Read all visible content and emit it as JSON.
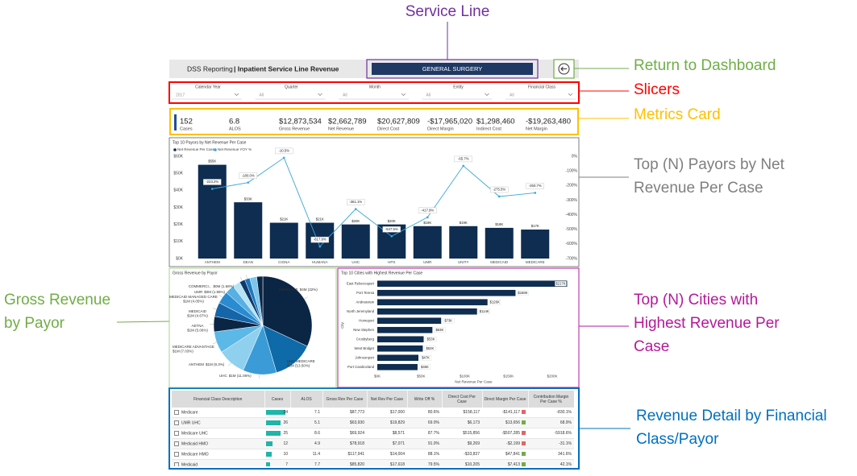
{
  "annotations": [
    {
      "lines": [
        "Service Line"
      ],
      "color": "#7030a0"
    },
    {
      "lines": [
        "Return to Dashboard"
      ],
      "color": "#70ad47"
    },
    {
      "lines": [
        "Slicers"
      ],
      "color": "#ff0000"
    },
    {
      "lines": [
        "Metrics Card"
      ],
      "color": "#ffc000"
    },
    {
      "lines": [
        "Top (N) Payors by Net",
        "Revenue Per Case"
      ],
      "color": "#7f7f7f"
    },
    {
      "lines": [
        "Gross Revenue",
        "by Payor"
      ],
      "color": "#70ad47"
    },
    {
      "lines": [
        "Top (N) Cities with",
        "Highest Revenue Per",
        "Case"
      ],
      "color": "#b4199b"
    },
    {
      "lines": [
        "Revenue Detail by Financial",
        "Class/Payor"
      ],
      "color": "#0070c0"
    }
  ],
  "header": {
    "app": "DSS Reporting",
    "title": "| Inpatient Service Line Revenue",
    "service_line": "GENERAL SURGERY"
  },
  "slicers": [
    {
      "label": "Calendar Year",
      "value": "2017"
    },
    {
      "label": "Quarter",
      "value": "All"
    },
    {
      "label": "Month",
      "value": "All"
    },
    {
      "label": "Entity",
      "value": "All"
    },
    {
      "label": "Financial Class",
      "value": "All"
    }
  ],
  "metrics": [
    {
      "value": "152",
      "label": "Cases"
    },
    {
      "value": "6.8",
      "label": "ALOS"
    },
    {
      "value": "$12,873,534",
      "label": "Gross Revenue"
    },
    {
      "value": "$2,662,789",
      "label": "Net Revenue"
    },
    {
      "value": "$20,627,809",
      "label": "Direct Cost"
    },
    {
      "value": "-$17,965,020",
      "label": "Direct Margin"
    },
    {
      "value": "$1,298,460",
      "label": "Indirect Cost"
    },
    {
      "value": "-$19,263,480",
      "label": "Net Margin"
    }
  ],
  "chart_data": [
    {
      "type": "bar",
      "title": "Top 10 Payors by Net Revenue Per Case",
      "categories": [
        "ANTHEM",
        "DEAN",
        "CIGNA",
        "HUMANA",
        "UHC",
        "HPS",
        "UMR",
        "UNITY",
        "MEDICAID",
        "MEDICARE"
      ],
      "series": [
        {
          "name": "Net Revenue Per Case",
          "color": "#0e2d50",
          "values": [
            55000,
            33000,
            21000,
            21000,
            20000,
            20000,
            19000,
            19000,
            18000,
            17000
          ],
          "value_labels": [
            "$55K",
            "$33K",
            "$21K",
            "$21K",
            "$20K",
            "$20K",
            "$19K",
            "$19K",
            "$18K",
            "$17K"
          ]
        },
        {
          "name": "Net Revenue YOY %",
          "color": "#3aa6d8",
          "axis": "y2",
          "values": [
            -223.2,
            -180.0,
            -10.5,
            -617.9,
            -361.1,
            -547.5,
            -417.9,
            -65.7,
            -275.5,
            -250.7
          ],
          "value_labels": [
            "-223.2%",
            "-180.0%",
            "-10.5%",
            "-617.9%",
            "-361.1%",
            "-547.5%",
            "-417.9%",
            "-65.7%",
            "-275.5%",
            "-250.7%"
          ]
        }
      ],
      "ylim": [
        0,
        60000
      ],
      "yticks": [
        {
          "value": 0,
          "label": "$0K"
        },
        {
          "value": 10000,
          "label": "$10K"
        },
        {
          "value": 20000,
          "label": "$20K"
        },
        {
          "value": 30000,
          "label": "$30K"
        },
        {
          "value": 40000,
          "label": "$40K"
        },
        {
          "value": 50000,
          "label": "$50K"
        },
        {
          "value": 60000,
          "label": "$60K"
        }
      ],
      "y2lim": [
        -700,
        0
      ],
      "y2ticks": [
        {
          "value": 0,
          "label": "0%"
        },
        {
          "value": -100,
          "label": "-100%"
        },
        {
          "value": -200,
          "label": "-200%"
        },
        {
          "value": -300,
          "label": "-300%"
        },
        {
          "value": -400,
          "label": "-400%"
        },
        {
          "value": -500,
          "label": "-500%"
        },
        {
          "value": -600,
          "label": "-600%"
        },
        {
          "value": -700,
          "label": "-700%"
        }
      ]
    },
    {
      "type": "pie",
      "title": "Gross Revenue by Payor",
      "categories": [
        "MEDICARE",
        "UHC MEDICARE",
        "UHC",
        "ANTHEM",
        "MEDICARE ADVANTAGE",
        "AETNA",
        "MEDICAID",
        "MEDICAID MANAGED CARE",
        null,
        null,
        "UMR",
        "COMMERCI...",
        null,
        null
      ],
      "values": [
        32,
        13.5,
        11.06,
        9.3,
        7.03,
        5.06,
        4.67,
        4.05,
        3,
        2.5,
        1.85,
        1.68,
        2.3,
        2
      ],
      "value_labels": [
        "$4M (32%)",
        "$2M (13.50%)",
        "$1M (11.06%)",
        "$1M (9.3%)",
        "$1M (7.03%)",
        "$1M (5.06%)",
        "$1M (4.67%)",
        "$1M (4.05%)",
        null,
        null,
        "$0M (1.85%)",
        "$0M (1.68%)",
        null,
        null
      ],
      "colors": [
        "#0b2545",
        "#0e6aa8",
        "#3a9bd6",
        "#8fd0ef",
        "#5cb8e6",
        "#0b2545",
        "#1565a8",
        "#2a8bd0",
        "#56b0e3",
        "#b7e3f5",
        "#0d3a6b",
        "#1d78c0",
        "#7cc6ec",
        "#0b2545"
      ]
    },
    {
      "type": "hbar",
      "title": "Top 10 Cities with Highest Revenue Per Case",
      "categories": [
        "East Rebeccaport",
        "Port Teresa",
        "Andreaview",
        "North Jeremyland",
        "Homeport",
        "New Stephen",
        "Crosbyberg",
        "West Bridget",
        "Johnsonport",
        "Port Candiceland"
      ],
      "values": [
        217000,
        158000,
        126000,
        114000,
        73000,
        63000,
        53000,
        52000,
        47000,
        46000
      ],
      "value_labels": [
        "$217K",
        "$158K",
        "$126K",
        "$114K",
        "$73K",
        "$63K",
        "$53K",
        "$52K",
        "$47K",
        "$46K"
      ],
      "color": "#0e2d50",
      "xlim": [
        0,
        220000
      ],
      "xticks": [
        {
          "value": 0,
          "label": "$0K"
        },
        {
          "value": 50000,
          "label": "$50K"
        },
        {
          "value": 100000,
          "label": "$100K"
        },
        {
          "value": 150000,
          "label": "$150K"
        },
        {
          "value": 200000,
          "label": "$200K"
        }
      ],
      "xlabel": "Net Revenue Per Case",
      "ylabel": "City"
    }
  ],
  "table": {
    "columns": [
      "Financial Class Description",
      "Cases",
      "ALOS",
      "Gross Rev Per Case",
      "Net Rev Per Case",
      "Write Off %",
      "Direct Cost Per Case",
      "Direct Margin Per Case",
      "Contribution Margin Per Case %"
    ],
    "rows": [
      [
        "Medicare",
        34,
        7.1,
        "$87,773",
        "$17,000",
        "80.6%",
        "$158,117",
        "-$141,117",
        "-830.1%"
      ],
      [
        "UMR UHC",
        26,
        5.1,
        "$63,930",
        "$19,829",
        "69.0%",
        "$6,173",
        "$13,656",
        "68.9%"
      ],
      [
        "Medicare UHC",
        25,
        8.6,
        "$69,924",
        "$8,571",
        "87.7%",
        "$515,856",
        "-$507,285",
        "-5918.6%"
      ],
      [
        "Medicaid HMO",
        12,
        4.9,
        "$78,918",
        "$7,071",
        "91.0%",
        "$9,269",
        "-$2,199",
        "-31.1%"
      ],
      [
        "Medicare HMO",
        10,
        11.4,
        "$117,941",
        "$14,004",
        "88.1%",
        "-$33,837",
        "$47,841",
        "341.6%"
      ],
      [
        "Medicaid",
        7,
        7.7,
        "$85,820",
        "$17,618",
        "79.5%",
        "$10,205",
        "$7,413",
        "42.1%"
      ]
    ]
  }
}
